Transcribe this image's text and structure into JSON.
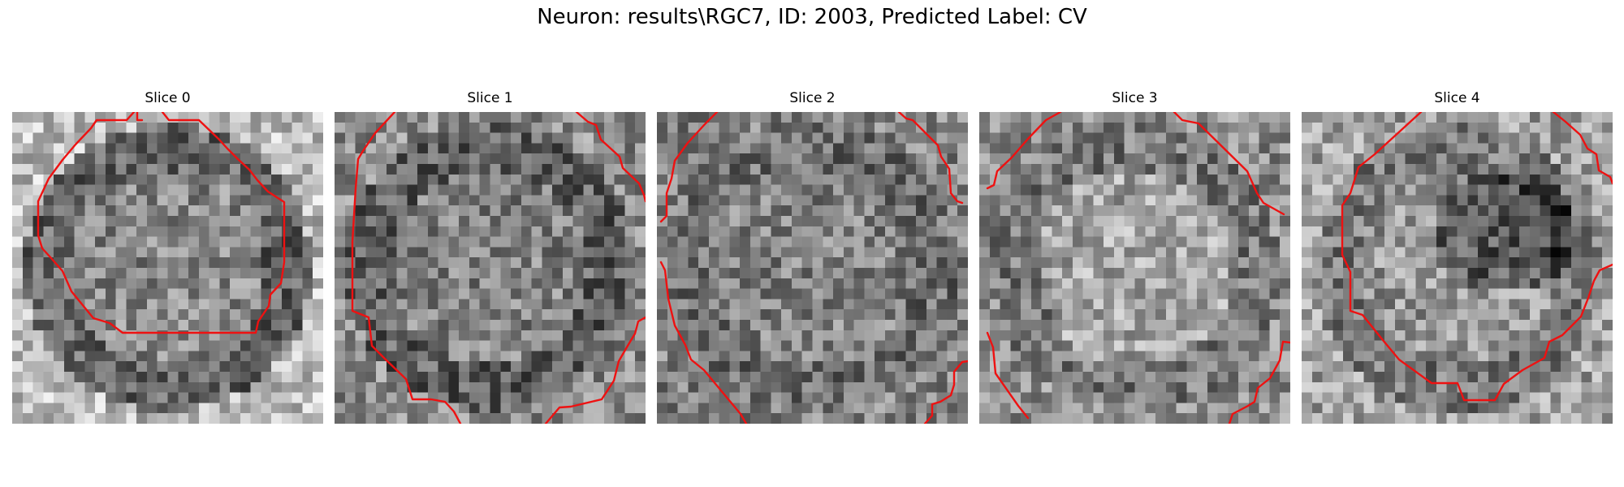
{
  "figure": {
    "title": "Neuron: results\\RGC7, ID: 2003, Predicted Label: CV",
    "contour_color": "#ee1111",
    "colormap": "grayscale",
    "slices": [
      {
        "label": "Slice 0"
      },
      {
        "label": "Slice 1"
      },
      {
        "label": "Slice 2"
      },
      {
        "label": "Slice 3"
      },
      {
        "label": "Slice 4"
      }
    ]
  }
}
